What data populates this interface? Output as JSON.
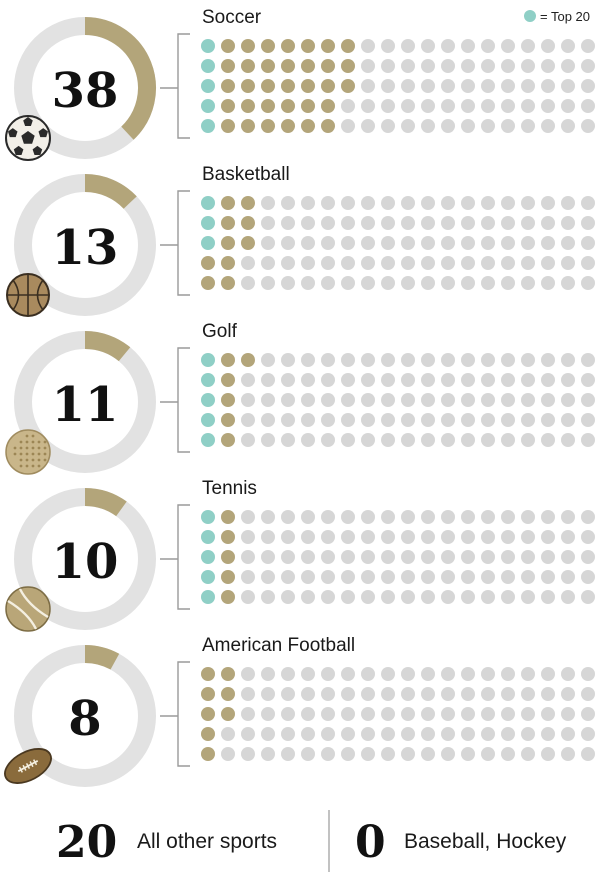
{
  "legend": {
    "label": "= Top 20",
    "color": "#8fcfc6"
  },
  "colors": {
    "top20": "#8fcfc6",
    "counted": "#b3a57a",
    "empty": "#d6d6d6",
    "ring_bg": "#e2e2e2",
    "ring_fill": "#b3a57a",
    "bracket": "#9a9a9a"
  },
  "chart_data": {
    "type": "waffle",
    "unit_total": 100,
    "series": [
      {
        "name": "Soccer",
        "value": 38,
        "top20": 5,
        "icon": "soccer-ball-icon"
      },
      {
        "name": "Basketball",
        "value": 13,
        "top20": 3,
        "icon": "basketball-icon"
      },
      {
        "name": "Golf",
        "value": 11,
        "top20": 5,
        "icon": "golf-ball-icon"
      },
      {
        "name": "Tennis",
        "value": 10,
        "top20": 5,
        "icon": "tennis-ball-icon"
      },
      {
        "name": "American Football",
        "value": 8,
        "top20": 0,
        "icon": "american-football-icon"
      }
    ],
    "footer": [
      {
        "value": "20",
        "label": "All other sports"
      },
      {
        "value": "0",
        "label": "Baseball, Hockey"
      }
    ]
  }
}
